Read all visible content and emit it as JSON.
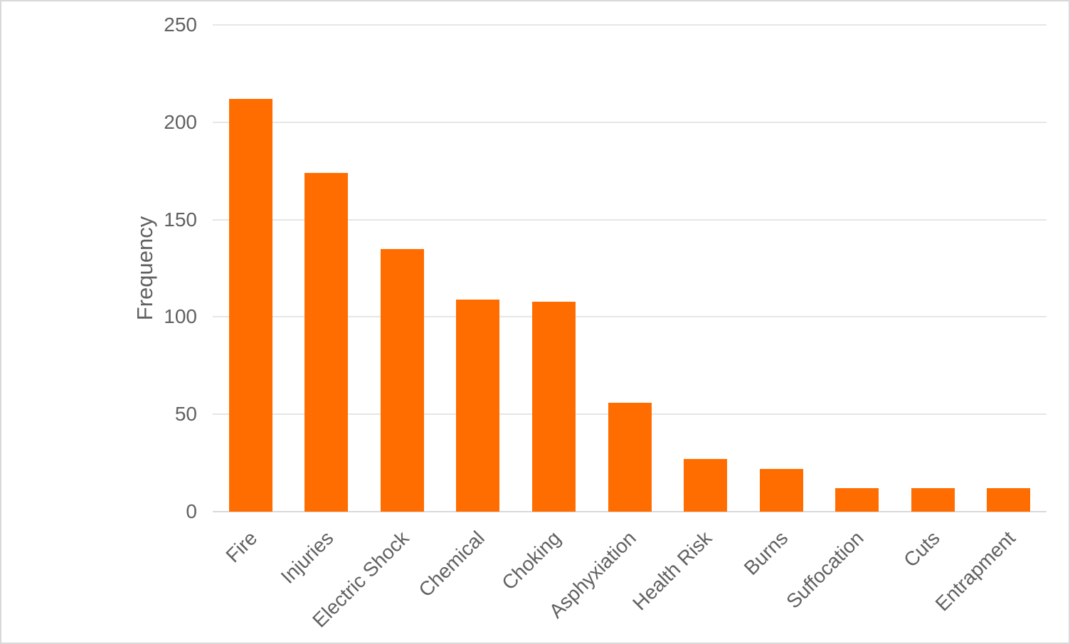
{
  "chart_data": {
    "type": "bar",
    "title": "",
    "categories": [
      "Fire",
      "Injuries",
      "Electric Shock",
      "Chemical",
      "Choking",
      "Asphyxiation",
      "Health Risk",
      "Burns",
      "Suffocation",
      "Cuts",
      "Entrapment"
    ],
    "values": [
      212,
      174,
      135,
      109,
      108,
      56,
      27,
      22,
      12,
      12,
      12
    ],
    "xlabel": "",
    "ylabel": "Frequency",
    "ylim": [
      0,
      250
    ],
    "yticks": [
      0,
      50,
      100,
      150,
      200,
      250
    ],
    "grid": "horizontal-only",
    "legend": "none",
    "colors": {
      "bar": "#FF6D01",
      "axis_text": "#616161",
      "gridline": "#e6e6e6",
      "baseline": "#d9d9d9",
      "frame_border": "#d9d9d9",
      "background": "#ffffff"
    }
  }
}
